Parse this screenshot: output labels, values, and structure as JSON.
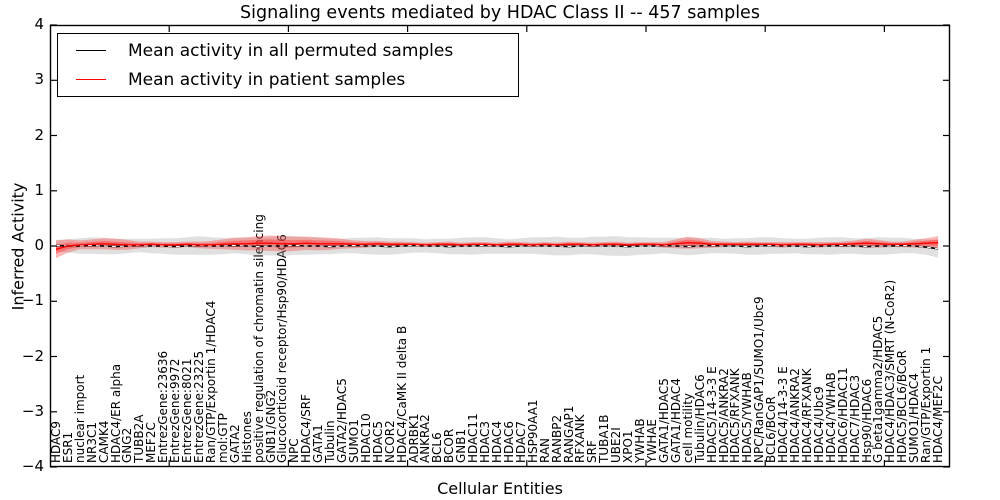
{
  "title": "Signaling events mediated by HDAC Class II -- 457 samples",
  "axes": {
    "xlabel": "Cellular Entities",
    "ylabel": "Inferred Activity"
  },
  "legend": {
    "items": [
      {
        "label": "Mean activity in all permuted samples",
        "color": "#000000"
      },
      {
        "label": "Mean activity in patient samples",
        "color": "#ff0000"
      }
    ]
  },
  "chart_data": {
    "type": "line",
    "title": "Signaling events mediated by HDAC Class II -- 457 samples",
    "xlabel": "Cellular Entities",
    "ylabel": "Inferred Activity",
    "ylim": [
      -4,
      4
    ],
    "yticks": [
      -4,
      -3,
      -2,
      -1,
      0,
      1,
      2,
      3,
      4
    ],
    "xticks": [
      10,
      20,
      30,
      40,
      50,
      60,
      70
    ],
    "grid": false,
    "legend_position": "upper left",
    "categories": [
      "HDAC9",
      "ESR1",
      "nuclear import",
      "NR3C1",
      "CAMK4",
      "HDAC4/ER alpha",
      "GNG2",
      "TUBB2A",
      "MEF2C",
      "EntrezGene:23636",
      "EntrezGene:9972",
      "EntrezGene:8021",
      "EntrezGene:23225",
      "Ran/GTP/Exportin 1/HDAC4",
      "mol:GTP",
      "GATA2",
      "Histones",
      "positive regulation of chromatin silencing",
      "GNB1/GNG2",
      "Glucocorticoid receptor/Hsp90/HDAC6",
      "NPC",
      "HDAC4/SRF",
      "GATA1",
      "Tubulin",
      "GATA2/HDAC5",
      "SUMO1",
      "HDAC10",
      "HDAC5",
      "NCOR2",
      "HDAC4/CaMK II delta B",
      "ADRBK1",
      "ANKRA2",
      "BCL6",
      "BCOR",
      "GNB1",
      "HDAC11",
      "HDAC3",
      "HDAC4",
      "HDAC6",
      "HDAC7",
      "HSP90AA1",
      "RAN",
      "RANBP2",
      "RANGAP1",
      "RFXANK",
      "SRF",
      "TUBA1B",
      "UBE2I",
      "XPO1",
      "YWHAB",
      "YWHAE",
      "GATA1/HDAC5",
      "GATA1/HDAC4",
      "cell motility",
      "Tubulin/HDAC6",
      "HDAC5/14-3-3 E",
      "HDAC5/ANKRA2",
      "HDAC5/RFXANK",
      "HDAC5/YWHAB",
      "NPC/RanGAP1/SUMO1/Ubc9",
      "BCL6/BCoR",
      "HDAC4/14-3-3 E",
      "HDAC4/ANKRA2",
      "HDAC4/RFXANK",
      "HDAC4/Ubc9",
      "HDAC4/YWHAB",
      "HDAC6/HDAC11",
      "HDAC7/HDAC3",
      "Hsp90/HDAC6",
      "G beta1gamma2/HDAC5",
      "HDAC4/HDAC3/SMRT (N-CoR2)",
      "HDAC5/BCL6/BCoR",
      "SUMO1/HDAC4",
      "Ran/GTP/Exportin 1",
      "HDAC4/MEF2C"
    ],
    "series": [
      {
        "name": "Mean activity in all permuted samples",
        "color": "#000000",
        "band_color": "#999999",
        "values": [
          0.01,
          0.0,
          0.0,
          0.01,
          0.0,
          -0.01,
          0.0,
          0.01,
          0.0,
          0.0,
          -0.01,
          0.0,
          0.01,
          0.0,
          0.0,
          0.01,
          0.0,
          -0.01,
          0.0,
          0.0,
          0.01,
          0.0,
          0.0,
          -0.01,
          0.0,
          0.01,
          0.0,
          0.0,
          -0.01,
          0.0,
          0.01,
          0.0,
          0.0,
          -0.01,
          0.0,
          0.0,
          0.01,
          0.0,
          -0.01,
          0.0,
          0.01,
          0.0,
          0.0,
          -0.01,
          0.0,
          0.01,
          0.0,
          0.0,
          -0.01,
          0.0,
          0.0,
          0.01,
          0.0,
          -0.01,
          0.0,
          0.01,
          0.0,
          0.0,
          -0.01,
          0.0,
          0.01,
          0.0,
          0.0,
          -0.01,
          0.0,
          0.0,
          0.01,
          0.0,
          -0.01,
          0.0,
          0.0,
          0.01,
          0.0,
          -0.02,
          -0.05
        ],
        "band_sd": [
          0.1,
          0.12,
          0.14,
          0.15,
          0.15,
          0.14,
          0.13,
          0.12,
          0.13,
          0.14,
          0.15,
          0.16,
          0.17,
          0.16,
          0.15,
          0.14,
          0.15,
          0.16,
          0.17,
          0.18,
          0.17,
          0.16,
          0.15,
          0.14,
          0.13,
          0.14,
          0.15,
          0.16,
          0.15,
          0.14,
          0.13,
          0.12,
          0.13,
          0.14,
          0.15,
          0.16,
          0.15,
          0.14,
          0.13,
          0.14,
          0.15,
          0.16,
          0.17,
          0.16,
          0.15,
          0.16,
          0.17,
          0.18,
          0.17,
          0.16,
          0.15,
          0.14,
          0.15,
          0.16,
          0.15,
          0.14,
          0.13,
          0.14,
          0.15,
          0.16,
          0.15,
          0.14,
          0.13,
          0.14,
          0.15,
          0.16,
          0.15,
          0.14,
          0.15,
          0.16,
          0.15,
          0.14,
          0.13,
          0.14,
          0.16
        ]
      },
      {
        "name": "Mean activity in patient samples",
        "color": "#ff0000",
        "band_color": "#ff3333",
        "values": [
          -0.06,
          0.0,
          0.02,
          0.03,
          0.04,
          0.03,
          0.02,
          0.02,
          0.03,
          0.02,
          0.02,
          0.03,
          0.02,
          0.02,
          0.03,
          0.04,
          0.04,
          0.05,
          0.05,
          0.04,
          0.04,
          0.05,
          0.04,
          0.04,
          0.04,
          0.03,
          0.03,
          0.04,
          0.03,
          0.03,
          0.03,
          0.02,
          0.03,
          0.03,
          0.02,
          0.03,
          0.03,
          0.02,
          0.03,
          0.03,
          0.02,
          0.03,
          0.02,
          0.03,
          0.03,
          0.02,
          0.03,
          0.03,
          0.02,
          0.03,
          0.03,
          0.02,
          0.04,
          0.06,
          0.05,
          0.03,
          0.03,
          0.03,
          0.03,
          0.03,
          0.03,
          0.02,
          0.03,
          0.03,
          0.02,
          0.03,
          0.03,
          0.04,
          0.05,
          0.04,
          0.03,
          0.03,
          0.04,
          0.05,
          0.06
        ],
        "band_sd": [
          0.16,
          0.12,
          0.08,
          0.09,
          0.1,
          0.1,
          0.09,
          0.06,
          0.05,
          0.05,
          0.05,
          0.05,
          0.06,
          0.07,
          0.09,
          0.11,
          0.12,
          0.13,
          0.14,
          0.14,
          0.13,
          0.12,
          0.12,
          0.11,
          0.09,
          0.07,
          0.06,
          0.05,
          0.05,
          0.05,
          0.04,
          0.04,
          0.04,
          0.05,
          0.04,
          0.04,
          0.04,
          0.04,
          0.05,
          0.04,
          0.04,
          0.04,
          0.04,
          0.05,
          0.04,
          0.04,
          0.04,
          0.05,
          0.04,
          0.04,
          0.04,
          0.05,
          0.08,
          0.11,
          0.09,
          0.06,
          0.05,
          0.04,
          0.05,
          0.04,
          0.04,
          0.05,
          0.04,
          0.04,
          0.05,
          0.04,
          0.05,
          0.06,
          0.08,
          0.07,
          0.05,
          0.05,
          0.07,
          0.09,
          0.12
        ]
      }
    ]
  }
}
